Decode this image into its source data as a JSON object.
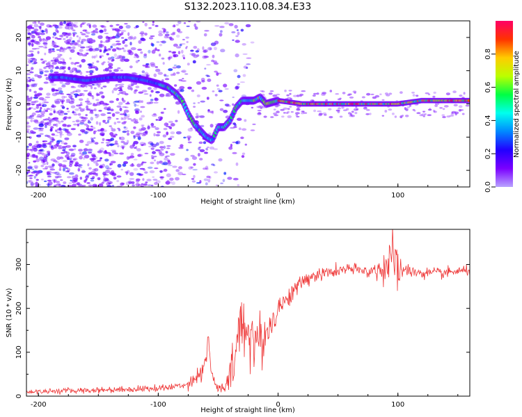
{
  "title": "S132.2023.110.08.34.E33",
  "chart_data": [
    {
      "type": "heatmap",
      "xlabel": "Height of straight line (km)",
      "ylabel": "Frequency (Hz)",
      "xlim": [
        -210,
        160
      ],
      "ylim": [
        -25,
        25
      ],
      "x_ticks": [
        "-200",
        "-100",
        "0",
        "100"
      ],
      "y_ticks": [
        "-20",
        "-10",
        "0",
        "10",
        "20"
      ],
      "colorbar": {
        "label": "Normalized spectral amplitude",
        "range": [
          0,
          1
        ],
        "ticks": [
          "0.0",
          "0.2",
          "0.4",
          "0.6",
          "0.8"
        ],
        "colormap": [
          "#b9a3ff",
          "#7b00ff",
          "#2200ff",
          "#0088ff",
          "#00ffee",
          "#00ff44",
          "#bbff00",
          "#ffcc00",
          "#ff3300",
          "#ff0066"
        ]
      },
      "ridge": {
        "x": [
          -180,
          -160,
          -140,
          -125,
          -110,
          -100,
          -92,
          -85,
          -80,
          -75,
          -70,
          -65,
          -60,
          -55,
          -50,
          -45,
          -40,
          -35,
          -30,
          -25,
          -20,
          -15,
          -10,
          0,
          20,
          50,
          80,
          100,
          120,
          140,
          160
        ],
        "y": [
          8,
          7,
          8,
          8,
          7,
          6,
          5,
          3,
          1,
          -3,
          -6,
          -8,
          -10,
          -11,
          -7,
          -7,
          -5,
          -1,
          1,
          1,
          1,
          2,
          0,
          1,
          0,
          0,
          0,
          0,
          1,
          1,
          1
        ]
      }
    },
    {
      "type": "line",
      "xlabel": "Height of straight line (km)",
      "ylabel": "SNR (10 * v/v)",
      "xlim": [
        -210,
        160
      ],
      "ylim": [
        0,
        380
      ],
      "x_ticks": [
        "-200",
        "-100",
        "0",
        "100"
      ],
      "y_ticks": [
        "0",
        "100",
        "200",
        "300"
      ],
      "color": "#ee3333",
      "series": {
        "x": [
          -210,
          -180,
          -150,
          -120,
          -100,
          -90,
          -80,
          -75,
          -70,
          -65,
          -60,
          -58,
          -56,
          -54,
          -50,
          -45,
          -40,
          -35,
          -30,
          -25,
          -20,
          -15,
          -10,
          -5,
          0,
          10,
          20,
          30,
          40,
          50,
          60,
          70,
          80,
          85,
          90,
          95,
          100,
          110,
          120,
          130,
          140,
          150,
          160
        ],
        "y": [
          10,
          12,
          14,
          16,
          18,
          20,
          25,
          30,
          40,
          50,
          90,
          130,
          60,
          35,
          20,
          15,
          40,
          110,
          170,
          150,
          130,
          120,
          140,
          170,
          200,
          230,
          260,
          275,
          280,
          285,
          290,
          285,
          285,
          290,
          300,
          310,
          290,
          285,
          280,
          280,
          280,
          285,
          285
        ]
      },
      "noise_sd": {
        "x": [
          -210,
          -80,
          -62,
          -55,
          -45,
          -35,
          -20,
          -5,
          10,
          40,
          80,
          85,
          90,
          100,
          105,
          160
        ],
        "sd": [
          4,
          6,
          18,
          10,
          8,
          55,
          55,
          25,
          15,
          10,
          10,
          25,
          45,
          45,
          10,
          8
        ]
      }
    }
  ]
}
